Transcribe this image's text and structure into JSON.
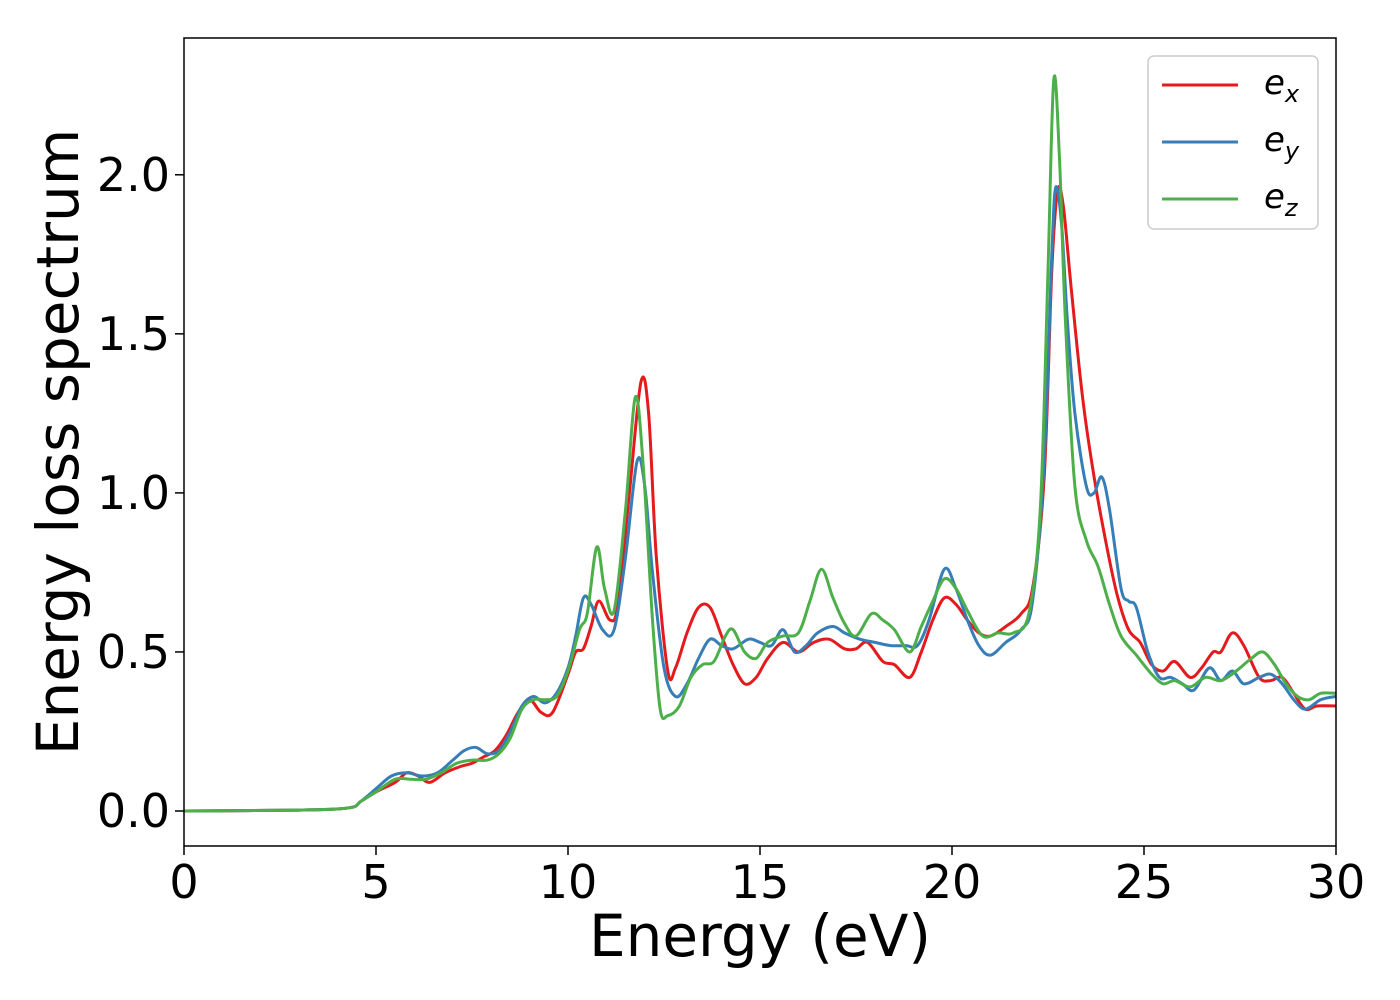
{
  "chart_data": {
    "type": "line",
    "xlabel": "Energy (eV)",
    "ylabel": "Energy loss spectrum",
    "xlim": [
      0,
      30
    ],
    "ylim": [
      -0.11,
      2.43
    ],
    "xticks": [
      0,
      5,
      10,
      15,
      20,
      25,
      30
    ],
    "xtick_labels": [
      "0",
      "5",
      "10",
      "15",
      "20",
      "25",
      "30"
    ],
    "yticks": [
      0.0,
      0.5,
      1.0,
      1.5,
      2.0
    ],
    "ytick_labels": [
      "0.0",
      "0.5",
      "1.0",
      "1.5",
      "2.0"
    ],
    "grid": false,
    "legend_position": "top-right",
    "series": [
      {
        "name": "e_x",
        "legend_base": "e",
        "legend_sub": "x",
        "color": "#e41a1c",
        "points": [
          [
            0,
            0
          ],
          [
            3,
            0.003
          ],
          [
            4.3,
            0.01
          ],
          [
            4.6,
            0.03
          ],
          [
            5,
            0.06
          ],
          [
            5.5,
            0.09
          ],
          [
            5.8,
            0.12
          ],
          [
            6.1,
            0.11
          ],
          [
            6.4,
            0.09
          ],
          [
            6.8,
            0.12
          ],
          [
            7.2,
            0.14
          ],
          [
            7.5,
            0.15
          ],
          [
            7.8,
            0.17
          ],
          [
            8.1,
            0.19
          ],
          [
            8.4,
            0.24
          ],
          [
            8.7,
            0.31
          ],
          [
            9,
            0.35
          ],
          [
            9.3,
            0.31
          ],
          [
            9.6,
            0.31
          ],
          [
            10,
            0.43
          ],
          [
            10.2,
            0.5
          ],
          [
            10.4,
            0.51
          ],
          [
            10.6,
            0.58
          ],
          [
            10.8,
            0.66
          ],
          [
            11.1,
            0.6
          ],
          [
            11.3,
            0.65
          ],
          [
            11.6,
            1.0
          ],
          [
            11.9,
            1.35
          ],
          [
            12.1,
            1.25
          ],
          [
            12.3,
            0.8
          ],
          [
            12.6,
            0.44
          ],
          [
            12.8,
            0.45
          ],
          [
            13.1,
            0.56
          ],
          [
            13.4,
            0.64
          ],
          [
            13.7,
            0.64
          ],
          [
            14,
            0.55
          ],
          [
            14.3,
            0.46
          ],
          [
            14.6,
            0.4
          ],
          [
            14.9,
            0.42
          ],
          [
            15.2,
            0.48
          ],
          [
            15.6,
            0.53
          ],
          [
            16,
            0.5
          ],
          [
            16.4,
            0.53
          ],
          [
            16.8,
            0.54
          ],
          [
            17.2,
            0.51
          ],
          [
            17.5,
            0.51
          ],
          [
            17.8,
            0.53
          ],
          [
            18.2,
            0.47
          ],
          [
            18.5,
            0.46
          ],
          [
            18.9,
            0.42
          ],
          [
            19.2,
            0.5
          ],
          [
            19.5,
            0.6
          ],
          [
            19.8,
            0.67
          ],
          [
            20.1,
            0.65
          ],
          [
            20.4,
            0.6
          ],
          [
            20.7,
            0.56
          ],
          [
            21,
            0.55
          ],
          [
            21.4,
            0.58
          ],
          [
            21.8,
            0.62
          ],
          [
            22.1,
            0.7
          ],
          [
            22.4,
            1.05
          ],
          [
            22.6,
            1.7
          ],
          [
            22.75,
            1.95
          ],
          [
            22.9,
            1.9
          ],
          [
            23.1,
            1.65
          ],
          [
            23.4,
            1.3
          ],
          [
            23.7,
            1.05
          ],
          [
            24,
            0.85
          ],
          [
            24.3,
            0.68
          ],
          [
            24.6,
            0.57
          ],
          [
            24.9,
            0.53
          ],
          [
            25.2,
            0.46
          ],
          [
            25.5,
            0.44
          ],
          [
            25.8,
            0.47
          ],
          [
            26.2,
            0.42
          ],
          [
            26.5,
            0.45
          ],
          [
            26.8,
            0.5
          ],
          [
            27,
            0.5
          ],
          [
            27.3,
            0.56
          ],
          [
            27.6,
            0.52
          ],
          [
            28,
            0.42
          ],
          [
            28.3,
            0.41
          ],
          [
            28.6,
            0.42
          ],
          [
            28.9,
            0.37
          ],
          [
            29.2,
            0.32
          ],
          [
            29.5,
            0.33
          ],
          [
            30,
            0.33
          ]
        ]
      },
      {
        "name": "e_y",
        "legend_base": "e",
        "legend_sub": "y",
        "color": "#377eb8",
        "points": [
          [
            0,
            0
          ],
          [
            3,
            0.003
          ],
          [
            4.3,
            0.01
          ],
          [
            4.6,
            0.03
          ],
          [
            5,
            0.07
          ],
          [
            5.4,
            0.11
          ],
          [
            5.8,
            0.12
          ],
          [
            6.2,
            0.11
          ],
          [
            6.6,
            0.12
          ],
          [
            7,
            0.16
          ],
          [
            7.3,
            0.19
          ],
          [
            7.6,
            0.2
          ],
          [
            7.9,
            0.18
          ],
          [
            8.2,
            0.19
          ],
          [
            8.5,
            0.25
          ],
          [
            8.8,
            0.33
          ],
          [
            9.1,
            0.36
          ],
          [
            9.4,
            0.34
          ],
          [
            9.7,
            0.37
          ],
          [
            10,
            0.45
          ],
          [
            10.2,
            0.55
          ],
          [
            10.4,
            0.67
          ],
          [
            10.6,
            0.65
          ],
          [
            10.9,
            0.57
          ],
          [
            11.2,
            0.57
          ],
          [
            11.5,
            0.8
          ],
          [
            11.8,
            1.1
          ],
          [
            12,
            1.02
          ],
          [
            12.2,
            0.75
          ],
          [
            12.5,
            0.45
          ],
          [
            12.8,
            0.36
          ],
          [
            13.1,
            0.4
          ],
          [
            13.4,
            0.48
          ],
          [
            13.7,
            0.54
          ],
          [
            14,
            0.52
          ],
          [
            14.3,
            0.51
          ],
          [
            14.7,
            0.54
          ],
          [
            15,
            0.53
          ],
          [
            15.3,
            0.52
          ],
          [
            15.6,
            0.57
          ],
          [
            15.9,
            0.5
          ],
          [
            16.2,
            0.52
          ],
          [
            16.5,
            0.56
          ],
          [
            16.9,
            0.58
          ],
          [
            17.2,
            0.56
          ],
          [
            17.6,
            0.54
          ],
          [
            18,
            0.53
          ],
          [
            18.4,
            0.52
          ],
          [
            18.8,
            0.52
          ],
          [
            19.1,
            0.52
          ],
          [
            19.4,
            0.6
          ],
          [
            19.8,
            0.76
          ],
          [
            20.1,
            0.7
          ],
          [
            20.4,
            0.6
          ],
          [
            20.7,
            0.52
          ],
          [
            21,
            0.49
          ],
          [
            21.4,
            0.53
          ],
          [
            21.8,
            0.57
          ],
          [
            22.1,
            0.66
          ],
          [
            22.4,
            1.1
          ],
          [
            22.6,
            1.75
          ],
          [
            22.7,
            1.96
          ],
          [
            22.85,
            1.85
          ],
          [
            23,
            1.55
          ],
          [
            23.2,
            1.25
          ],
          [
            23.5,
            1.02
          ],
          [
            23.7,
            1.0
          ],
          [
            23.9,
            1.05
          ],
          [
            24.1,
            0.95
          ],
          [
            24.4,
            0.7
          ],
          [
            24.6,
            0.66
          ],
          [
            24.8,
            0.64
          ],
          [
            25.1,
            0.5
          ],
          [
            25.4,
            0.42
          ],
          [
            25.7,
            0.42
          ],
          [
            26,
            0.4
          ],
          [
            26.3,
            0.38
          ],
          [
            26.7,
            0.45
          ],
          [
            27,
            0.41
          ],
          [
            27.3,
            0.44
          ],
          [
            27.6,
            0.4
          ],
          [
            28,
            0.42
          ],
          [
            28.3,
            0.43
          ],
          [
            28.6,
            0.4
          ],
          [
            28.9,
            0.35
          ],
          [
            29.2,
            0.32
          ],
          [
            29.6,
            0.35
          ],
          [
            30,
            0.36
          ]
        ]
      },
      {
        "name": "e_z",
        "legend_base": "e",
        "legend_sub": "z",
        "color": "#4daf4a",
        "points": [
          [
            0,
            0
          ],
          [
            3,
            0.003
          ],
          [
            4.3,
            0.01
          ],
          [
            4.6,
            0.03
          ],
          [
            5,
            0.06
          ],
          [
            5.5,
            0.1
          ],
          [
            5.9,
            0.1
          ],
          [
            6.3,
            0.1
          ],
          [
            6.7,
            0.12
          ],
          [
            7.1,
            0.15
          ],
          [
            7.5,
            0.16
          ],
          [
            7.9,
            0.16
          ],
          [
            8.2,
            0.18
          ],
          [
            8.5,
            0.23
          ],
          [
            8.8,
            0.32
          ],
          [
            9.1,
            0.35
          ],
          [
            9.4,
            0.35
          ],
          [
            9.7,
            0.36
          ],
          [
            10,
            0.44
          ],
          [
            10.3,
            0.57
          ],
          [
            10.5,
            0.62
          ],
          [
            10.75,
            0.83
          ],
          [
            10.95,
            0.7
          ],
          [
            11.2,
            0.63
          ],
          [
            11.5,
            0.95
          ],
          [
            11.75,
            1.3
          ],
          [
            11.95,
            1.1
          ],
          [
            12.2,
            0.6
          ],
          [
            12.4,
            0.32
          ],
          [
            12.6,
            0.3
          ],
          [
            12.9,
            0.33
          ],
          [
            13.2,
            0.42
          ],
          [
            13.5,
            0.46
          ],
          [
            13.8,
            0.47
          ],
          [
            14.1,
            0.55
          ],
          [
            14.3,
            0.57
          ],
          [
            14.6,
            0.5
          ],
          [
            14.9,
            0.48
          ],
          [
            15.2,
            0.53
          ],
          [
            15.6,
            0.55
          ],
          [
            16,
            0.56
          ],
          [
            16.3,
            0.66
          ],
          [
            16.6,
            0.76
          ],
          [
            16.9,
            0.67
          ],
          [
            17.2,
            0.59
          ],
          [
            17.5,
            0.55
          ],
          [
            17.9,
            0.62
          ],
          [
            18.2,
            0.6
          ],
          [
            18.5,
            0.57
          ],
          [
            18.9,
            0.5
          ],
          [
            19.2,
            0.58
          ],
          [
            19.5,
            0.66
          ],
          [
            19.8,
            0.73
          ],
          [
            20.1,
            0.7
          ],
          [
            20.4,
            0.63
          ],
          [
            20.8,
            0.55
          ],
          [
            21.2,
            0.56
          ],
          [
            21.6,
            0.56
          ],
          [
            22,
            0.62
          ],
          [
            22.3,
            0.95
          ],
          [
            22.5,
            1.7
          ],
          [
            22.65,
            2.3
          ],
          [
            22.8,
            2.05
          ],
          [
            22.95,
            1.55
          ],
          [
            23.2,
            1.02
          ],
          [
            23.5,
            0.85
          ],
          [
            23.8,
            0.77
          ],
          [
            24.1,
            0.65
          ],
          [
            24.4,
            0.55
          ],
          [
            24.8,
            0.49
          ],
          [
            25.2,
            0.43
          ],
          [
            25.5,
            0.4
          ],
          [
            25.8,
            0.41
          ],
          [
            26.2,
            0.39
          ],
          [
            26.6,
            0.42
          ],
          [
            27,
            0.41
          ],
          [
            27.4,
            0.44
          ],
          [
            27.8,
            0.48
          ],
          [
            28.1,
            0.5
          ],
          [
            28.4,
            0.46
          ],
          [
            28.7,
            0.4
          ],
          [
            29,
            0.36
          ],
          [
            29.3,
            0.35
          ],
          [
            29.6,
            0.37
          ],
          [
            30,
            0.37
          ]
        ]
      }
    ]
  }
}
